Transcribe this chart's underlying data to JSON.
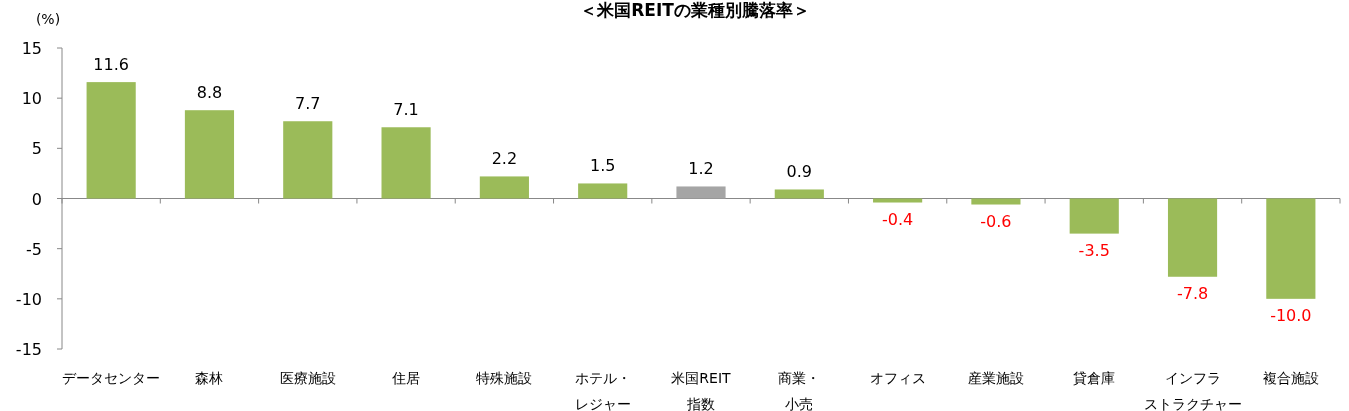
{
  "chart_data": {
    "type": "bar",
    "title": "＜米国REITの業種別騰落率＞",
    "ylabel": "(%)",
    "categories": [
      "データセンター",
      "森林",
      "医療施設",
      "住居",
      "特殊施設",
      "ホテル・レジャー",
      "米国REIT指数",
      "商業・小売",
      "オフィス",
      "産業施設",
      "貸倉庫",
      "インフラストラクチャー",
      "複合施設"
    ],
    "values": [
      11.6,
      8.8,
      7.7,
      7.1,
      2.2,
      1.5,
      1.2,
      0.9,
      -0.4,
      -0.6,
      -3.5,
      -7.8,
      -10.0
    ],
    "colors": [
      "#9bbb59",
      "#9bbb59",
      "#9bbb59",
      "#9bbb59",
      "#9bbb59",
      "#9bbb59",
      "#a5a5a5",
      "#9bbb59",
      "#9bbb59",
      "#9bbb59",
      "#9bbb59",
      "#9bbb59",
      "#9bbb59"
    ],
    "value_labels": [
      "11.6",
      "8.8",
      "7.7",
      "7.1",
      "2.2",
      "1.5",
      "1.2",
      "0.9",
      "-0.4",
      "-0.6",
      "-3.5",
      "-7.8",
      "-10.0"
    ],
    "ylim": [
      -15,
      15
    ],
    "yticks": [
      -15,
      -10,
      -5,
      0,
      5,
      10,
      15
    ]
  }
}
